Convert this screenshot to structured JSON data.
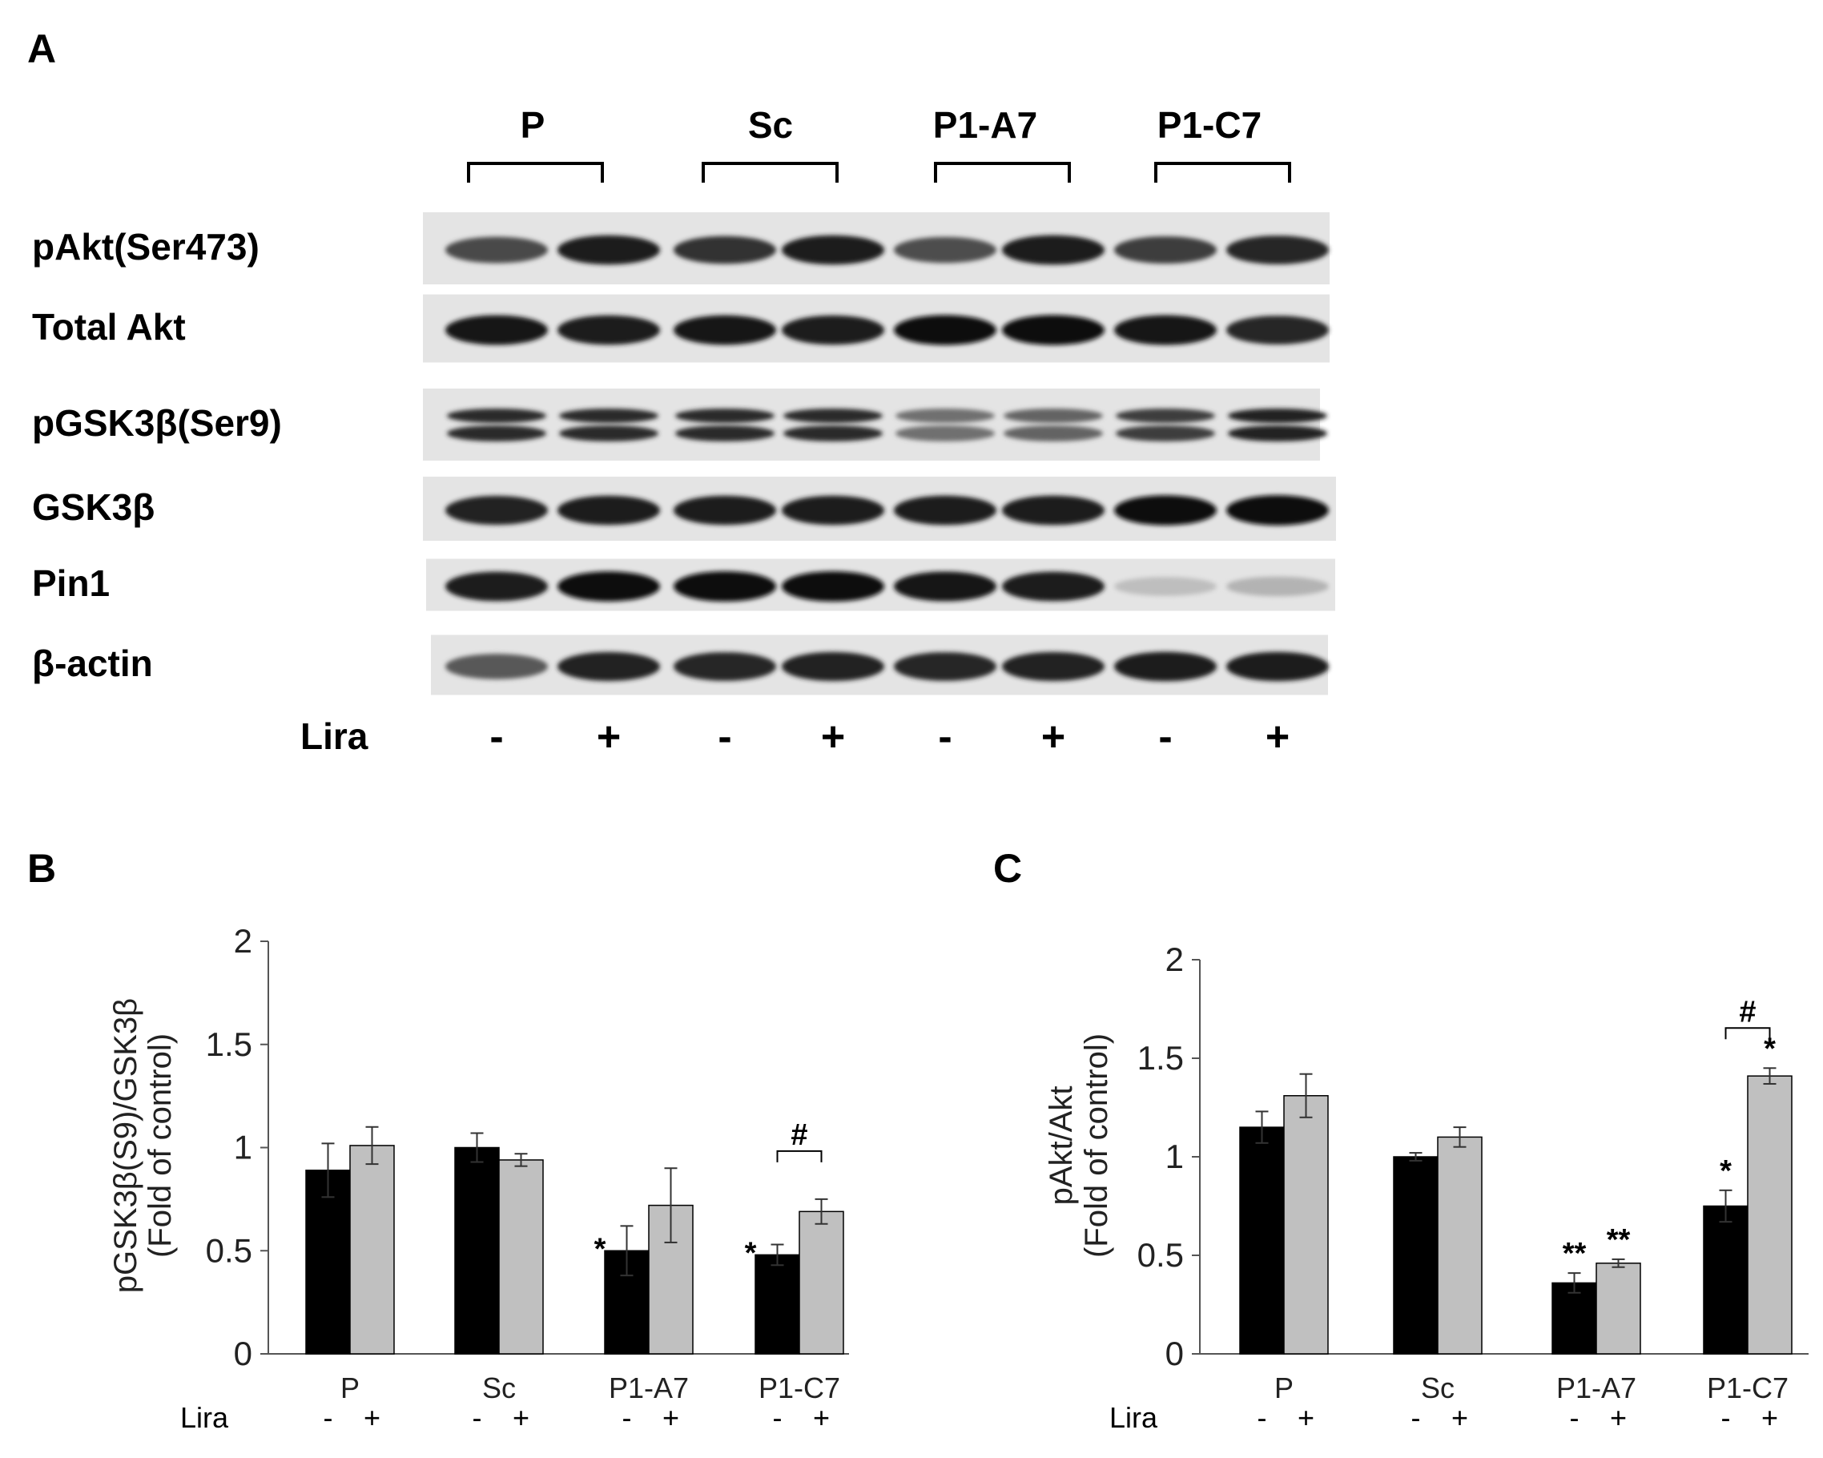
{
  "panels": {
    "a": "A",
    "b": "B",
    "c": "C"
  },
  "blot": {
    "groups": [
      "P",
      "Sc",
      "P1-A7",
      "P1-C7"
    ],
    "rows": [
      {
        "label": "pAkt(Ser473)",
        "intensity": [
          0.72,
          0.92,
          0.82,
          0.92,
          0.7,
          0.93,
          0.78,
          0.88
        ],
        "double": false
      },
      {
        "label": "Total Akt",
        "intensity": [
          0.95,
          0.93,
          0.94,
          0.92,
          0.97,
          0.97,
          0.96,
          0.88
        ],
        "double": false
      },
      {
        "label": "pGSK3β(Ser9)",
        "intensity": [
          0.85,
          0.85,
          0.85,
          0.85,
          0.55,
          0.6,
          0.78,
          0.9
        ],
        "double": true
      },
      {
        "label": "GSK3β",
        "intensity": [
          0.9,
          0.92,
          0.92,
          0.92,
          0.93,
          0.93,
          0.97,
          0.98
        ],
        "double": false
      },
      {
        "label": "Pin1",
        "intensity": [
          0.93,
          0.97,
          0.99,
          0.99,
          0.95,
          0.93,
          0.2,
          0.25
        ],
        "double": false
      },
      {
        "label": "β-actin",
        "intensity": [
          0.65,
          0.9,
          0.88,
          0.9,
          0.88,
          0.9,
          0.93,
          0.92
        ],
        "double": false
      }
    ],
    "lira_label": "Lira",
    "lira_signs": [
      "-",
      "+",
      "-",
      "+",
      "-",
      "+",
      "-",
      "+"
    ]
  },
  "chart_data": [
    {
      "type": "bar",
      "panel": "B",
      "ylabel_line1": "pGSK3β(S9)/GSK3β",
      "ylabel_line2": "(Fold of control)",
      "ylim": [
        0,
        2
      ],
      "yticks": [
        "0",
        "0.5",
        "1",
        "1.5",
        "2"
      ],
      "categories": [
        "P",
        "Sc",
        "P1-A7",
        "P1-C7"
      ],
      "lira_label": "Lira",
      "series": [
        {
          "lira": "-",
          "color": "#000000",
          "values": [
            0.89,
            1.0,
            0.5,
            0.48
          ],
          "errors": [
            0.13,
            0.07,
            0.12,
            0.05
          ],
          "marks": [
            "",
            "",
            "*",
            "*"
          ]
        },
        {
          "lira": "+",
          "color": "#c0c0c0",
          "values": [
            1.01,
            0.94,
            0.72,
            0.69
          ],
          "errors": [
            0.09,
            0.03,
            0.18,
            0.06
          ],
          "marks": [
            "",
            "",
            "",
            ""
          ]
        }
      ],
      "bracket": {
        "category": 3,
        "mark": "#"
      }
    },
    {
      "type": "bar",
      "panel": "C",
      "ylabel_line1": "pAkt/Akt",
      "ylabel_line2": "(Fold of control)",
      "ylim": [
        0,
        2
      ],
      "yticks": [
        "0",
        "0.5",
        "1",
        "1.5",
        "2"
      ],
      "categories": [
        "P",
        "Sc",
        "P1-A7",
        "P1-C7"
      ],
      "lira_label": "Lira",
      "series": [
        {
          "lira": "-",
          "color": "#000000",
          "values": [
            1.15,
            1.0,
            0.36,
            0.75
          ],
          "errors": [
            0.08,
            0.02,
            0.05,
            0.08
          ],
          "marks": [
            "",
            "",
            "**",
            "*"
          ]
        },
        {
          "lira": "+",
          "color": "#c0c0c0",
          "values": [
            1.31,
            1.1,
            0.46,
            1.41
          ],
          "errors": [
            0.11,
            0.05,
            0.02,
            0.04
          ],
          "marks": [
            "",
            "",
            "**",
            "*"
          ]
        }
      ],
      "bracket": {
        "category": 3,
        "mark": "#"
      }
    }
  ]
}
